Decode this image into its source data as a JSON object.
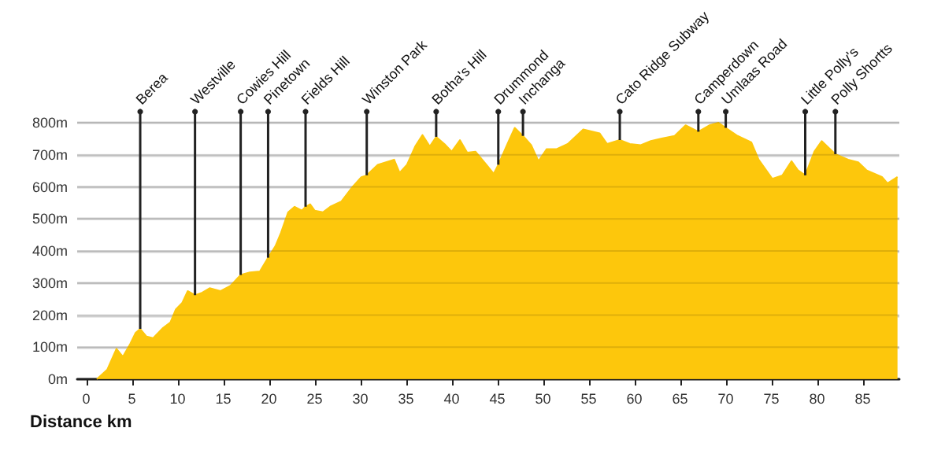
{
  "chart_data": {
    "type": "area",
    "xlabel": "Distance km",
    "color": "#fdc70c",
    "grid": "y",
    "marker": "none",
    "x": [
      1.15,
      2.3,
      3.3,
      4.0,
      4.8,
      5.4,
      5.9,
      6.6,
      7.3,
      8.4,
      9.2,
      9.8,
      10.5,
      11.1,
      11.9,
      12.7,
      13.5,
      14.7,
      15.8,
      16.9,
      17.9,
      19.0,
      19.9,
      20.7,
      21.3,
      22.1,
      22.8,
      23.6,
      24.0,
      24.5,
      25.0,
      25.9,
      26.7,
      27.9,
      29.0,
      30.1,
      30.7,
      31.9,
      33.7,
      34.3,
      35.1,
      36.0,
      36.8,
      37.6,
      38.3,
      39.2,
      40.0,
      40.9,
      41.7,
      42.6,
      43.8,
      44.6,
      45.1,
      46.1,
      46.9,
      47.8,
      48.7,
      49.5,
      50.4,
      51.5,
      52.7,
      54.4,
      56.2,
      57.0,
      58.4,
      59.5,
      60.7,
      61.8,
      63.0,
      64.4,
      65.6,
      67.0,
      68.2,
      69.2,
      70.0,
      71.3,
      72.8,
      73.6,
      75.1,
      76.2,
      77.2,
      77.9,
      78.7,
      79.7,
      80.5,
      82.0,
      83.4,
      84.5,
      85.4,
      87.1,
      87.7,
      88.8
    ],
    "values": [
      0,
      30,
      95,
      70,
      110,
      145,
      157,
      133,
      128,
      160,
      177,
      218,
      238,
      275,
      262,
      270,
      284,
      275,
      292,
      325,
      333,
      336,
      379,
      415,
      456,
      521,
      538,
      526,
      538,
      546,
      526,
      521,
      538,
      554,
      595,
      630,
      636,
      669,
      685,
      644,
      669,
      726,
      762,
      726,
      756,
      734,
      710,
      746,
      707,
      710,
      669,
      641,
      669,
      734,
      784,
      759,
      730,
      680,
      718,
      718,
      734,
      779,
      767,
      734,
      746,
      734,
      730,
      743,
      751,
      759,
      792,
      772,
      792,
      800,
      784,
      759,
      739,
      685,
      625,
      636,
      680,
      652,
      636,
      710,
      743,
      702,
      685,
      677,
      652,
      631,
      611,
      631
    ],
    "xlim": [
      -1,
      89
    ],
    "xticks": [
      0,
      5,
      10,
      15,
      20,
      25,
      30,
      35,
      40,
      45,
      50,
      55,
      60,
      65,
      70,
      75,
      80,
      85
    ],
    "ylim": [
      0,
      800
    ],
    "yticks": [
      {
        "value": 0,
        "label": "0m"
      },
      {
        "value": 100,
        "label": "100m"
      },
      {
        "value": 200,
        "label": "200m"
      },
      {
        "value": 300,
        "label": "300m"
      },
      {
        "value": 400,
        "label": "400m"
      },
      {
        "value": 500,
        "label": "500m"
      },
      {
        "value": 600,
        "label": "600m"
      },
      {
        "value": 700,
        "label": "700m"
      },
      {
        "value": 800,
        "label": "800m"
      }
    ],
    "annotations": [
      {
        "text": "Berea",
        "x": 5.9,
        "y": 157
      },
      {
        "text": "Westville",
        "x": 11.9,
        "y": 262
      },
      {
        "text": "Cowies Hill",
        "x": 16.9,
        "y": 325
      },
      {
        "text": "Pinetown",
        "x": 19.9,
        "y": 379
      },
      {
        "text": "Fields Hill",
        "x": 24.0,
        "y": 538
      },
      {
        "text": "Winston Park",
        "x": 30.7,
        "y": 636
      },
      {
        "text": "Botha's Hill",
        "x": 38.3,
        "y": 756
      },
      {
        "text": "Drummond",
        "x": 45.1,
        "y": 669
      },
      {
        "text": "Inchanga",
        "x": 47.8,
        "y": 759
      },
      {
        "text": "Cato Ridge Subway",
        "x": 58.4,
        "y": 746
      },
      {
        "text": "Camperdown",
        "x": 67.0,
        "y": 772
      },
      {
        "text": "Umlaas Road",
        "x": 70.0,
        "y": 784
      },
      {
        "text": "Little Polly's",
        "x": 78.7,
        "y": 636
      },
      {
        "text": "Polly Shortts",
        "x": 82.0,
        "y": 702
      }
    ]
  }
}
